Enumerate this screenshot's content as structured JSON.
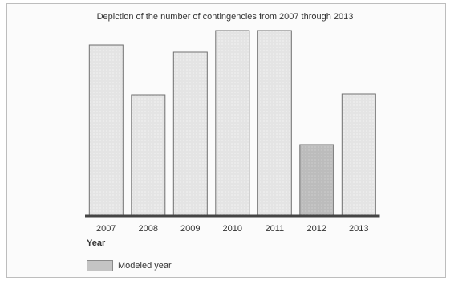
{
  "chart_data": {
    "type": "bar",
    "title": "Depiction of the number of contingencies from 2007 through 2013",
    "xlabel": "Year",
    "ylabel": "",
    "categories": [
      "2007",
      "2008",
      "2009",
      "2010",
      "2011",
      "2012",
      "2013"
    ],
    "values": [
      212,
      150,
      203,
      230,
      230,
      88,
      151
    ],
    "modeled": [
      false,
      false,
      false,
      false,
      false,
      true,
      false
    ],
    "ylim": [
      0,
      240
    ],
    "grid": false,
    "legend": {
      "placement": "bottom-left",
      "label": "Modeled year"
    },
    "colors": {
      "bar_fill": "#ebebeb",
      "modeled_fill": "#c4c4c4",
      "bar_edge": "#6f6f6f",
      "axis": "#444444"
    }
  }
}
